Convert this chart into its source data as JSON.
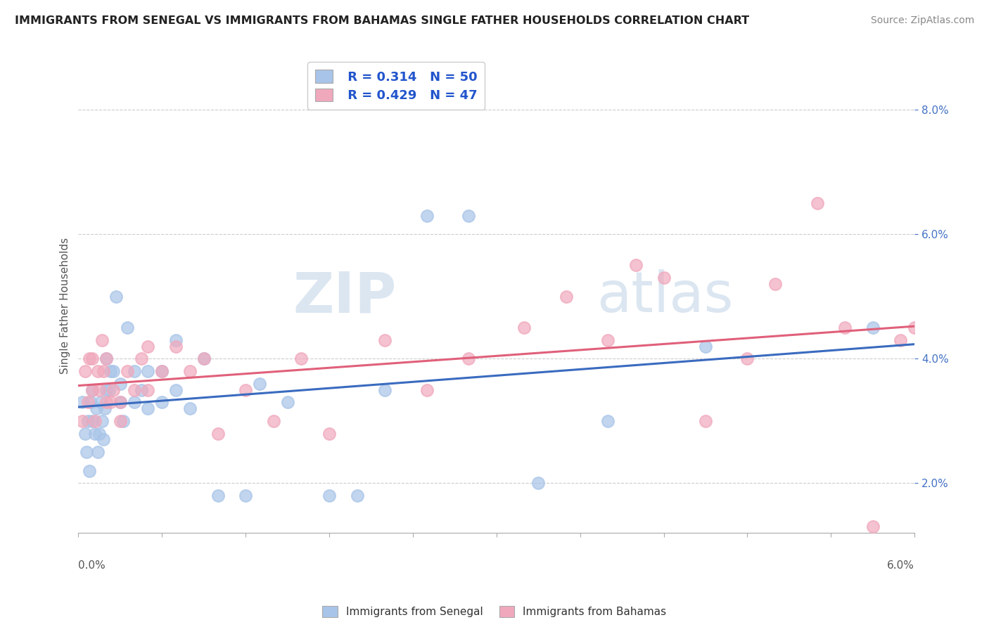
{
  "title": "IMMIGRANTS FROM SENEGAL VS IMMIGRANTS FROM BAHAMAS SINGLE FATHER HOUSEHOLDS CORRELATION CHART",
  "source": "Source: ZipAtlas.com",
  "ylabel": "Single Father Households",
  "legend_label1": "Immigrants from Senegal",
  "legend_label2": "Immigrants from Bahamas",
  "r1": 0.314,
  "n1": 50,
  "r2": 0.429,
  "n2": 47,
  "color1": "#a8c4e8",
  "color2": "#f0a8bc",
  "line_color1": "#3a6bbf",
  "line_color2": "#e0607a",
  "watermark_zip": "ZIP",
  "watermark_atlas": "atlas",
  "senegal_x": [
    0.0003,
    0.0005,
    0.0006,
    0.0007,
    0.0008,
    0.0009,
    0.001,
    0.001,
    0.0012,
    0.0013,
    0.0014,
    0.0015,
    0.0016,
    0.0017,
    0.0018,
    0.0019,
    0.002,
    0.002,
    0.0022,
    0.0023,
    0.0025,
    0.0027,
    0.003,
    0.003,
    0.0032,
    0.0035,
    0.004,
    0.004,
    0.0045,
    0.005,
    0.005,
    0.006,
    0.006,
    0.007,
    0.007,
    0.008,
    0.009,
    0.01,
    0.012,
    0.013,
    0.015,
    0.018,
    0.02,
    0.022,
    0.025,
    0.028,
    0.033,
    0.038,
    0.045,
    0.057
  ],
  "senegal_y": [
    0.033,
    0.028,
    0.025,
    0.03,
    0.022,
    0.033,
    0.03,
    0.035,
    0.028,
    0.032,
    0.025,
    0.028,
    0.033,
    0.03,
    0.027,
    0.032,
    0.035,
    0.04,
    0.035,
    0.038,
    0.038,
    0.05,
    0.033,
    0.036,
    0.03,
    0.045,
    0.038,
    0.033,
    0.035,
    0.032,
    0.038,
    0.033,
    0.038,
    0.043,
    0.035,
    0.032,
    0.04,
    0.018,
    0.018,
    0.036,
    0.033,
    0.018,
    0.018,
    0.035,
    0.063,
    0.063,
    0.02,
    0.03,
    0.042,
    0.045
  ],
  "bahamas_x": [
    0.0003,
    0.0005,
    0.0007,
    0.0008,
    0.001,
    0.001,
    0.0012,
    0.0014,
    0.0015,
    0.0017,
    0.0018,
    0.002,
    0.002,
    0.0023,
    0.0025,
    0.003,
    0.003,
    0.0035,
    0.004,
    0.0045,
    0.005,
    0.005,
    0.006,
    0.007,
    0.008,
    0.009,
    0.01,
    0.012,
    0.014,
    0.016,
    0.018,
    0.022,
    0.025,
    0.028,
    0.032,
    0.035,
    0.038,
    0.04,
    0.042,
    0.045,
    0.048,
    0.05,
    0.053,
    0.055,
    0.057,
    0.059,
    0.06
  ],
  "bahamas_y": [
    0.03,
    0.038,
    0.033,
    0.04,
    0.035,
    0.04,
    0.03,
    0.038,
    0.035,
    0.043,
    0.038,
    0.033,
    0.04,
    0.033,
    0.035,
    0.033,
    0.03,
    0.038,
    0.035,
    0.04,
    0.035,
    0.042,
    0.038,
    0.042,
    0.038,
    0.04,
    0.028,
    0.035,
    0.03,
    0.04,
    0.028,
    0.043,
    0.035,
    0.04,
    0.045,
    0.05,
    0.043,
    0.055,
    0.053,
    0.03,
    0.04,
    0.052,
    0.065,
    0.045,
    0.013,
    0.043,
    0.045
  ],
  "xlim": [
    0.0,
    0.06
  ],
  "ylim": [
    0.012,
    0.085
  ],
  "yticks": [
    0.02,
    0.04,
    0.06,
    0.08
  ],
  "ytick_labels": [
    "2.0%",
    "4.0%",
    "6.0%",
    "8.0%"
  ],
  "grid_color": "#cccccc",
  "background_color": "#ffffff",
  "right_axis_color": "#4472c4",
  "title_fontsize": 11.5,
  "source_fontsize": 10
}
